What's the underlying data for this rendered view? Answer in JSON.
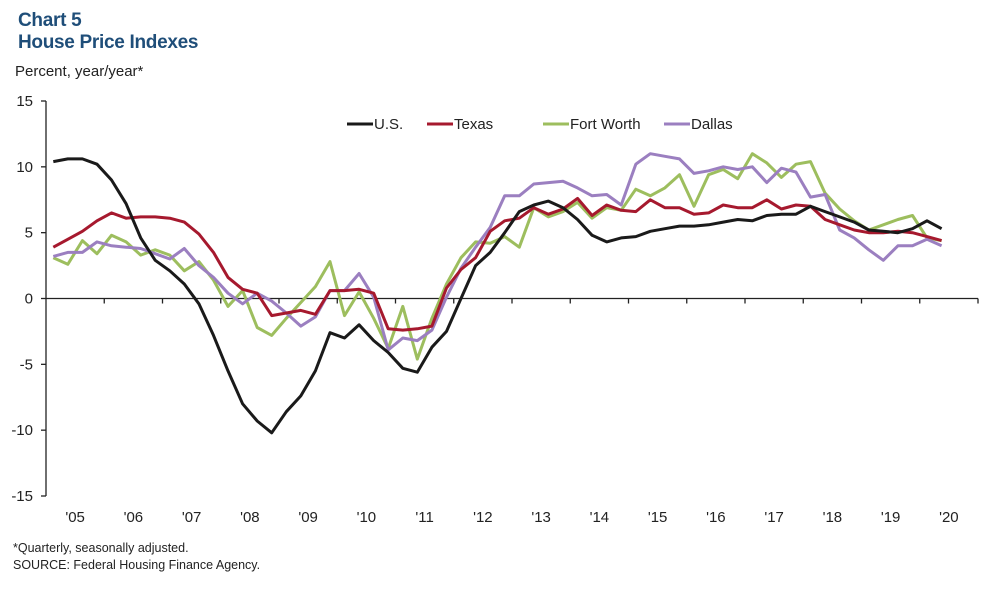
{
  "header": {
    "chart_label": "Chart 5",
    "title": "House Price Indexes",
    "units": "Percent, year/year*"
  },
  "footer": {
    "note": "*Quarterly, seasonally adjusted.",
    "source": "SOURCE: Federal Housing Finance Agency."
  },
  "chart_data": {
    "type": "line",
    "title": "House Price Indexes",
    "ylabel": "Percent, year/year*",
    "xlabel": "",
    "ylim": [
      -15,
      15
    ],
    "yticks": [
      15,
      10,
      5,
      0,
      -5,
      -10,
      -15
    ],
    "ytick_labels": [
      "15",
      "10",
      "5",
      "0",
      "-5",
      "-10",
      "-15"
    ],
    "xtick_labels": [
      "'05",
      "'06",
      "'07",
      "'08",
      "'09",
      "'10",
      "'11",
      "'12",
      "'13",
      "'14",
      "'15",
      "'16",
      "'17",
      "'18",
      "'19",
      "'20"
    ],
    "x_start": "2005Q1",
    "frequency": "quarterly",
    "grid": false,
    "legend_position": "top-center",
    "series": [
      {
        "name": "U.S.",
        "color": "#1a1a1a",
        "values": [
          10.4,
          10.6,
          10.6,
          10.2,
          9.0,
          7.2,
          4.6,
          2.9,
          2.1,
          1.1,
          -0.4,
          -2.8,
          -5.5,
          -8.0,
          -9.3,
          -10.2,
          -8.6,
          -7.4,
          -5.5,
          -2.6,
          -3.0,
          -2.0,
          -3.2,
          -4.1,
          -5.3,
          -5.6,
          -3.7,
          -2.5,
          0.0,
          2.5,
          3.5,
          5.0,
          6.6,
          7.1,
          7.4,
          6.9,
          6.0,
          4.8,
          4.3,
          4.6,
          4.7,
          5.1,
          5.3,
          5.5,
          5.5,
          5.6,
          5.8,
          6.0,
          5.9,
          6.3,
          6.4,
          6.4,
          7.0,
          6.6,
          6.2,
          5.8,
          5.2,
          5.1,
          5.0,
          5.3,
          5.9,
          5.3
        ]
      },
      {
        "name": "Texas",
        "color": "#a6192e",
        "values": [
          3.9,
          4.5,
          5.1,
          5.9,
          6.5,
          6.1,
          6.2,
          6.2,
          6.1,
          5.8,
          4.9,
          3.5,
          1.6,
          0.7,
          0.4,
          -1.3,
          -1.1,
          -0.9,
          -1.2,
          0.6,
          0.6,
          0.7,
          0.4,
          -2.3,
          -2.4,
          -2.3,
          -2.1,
          0.8,
          2.2,
          3.1,
          5.1,
          5.9,
          6.1,
          6.9,
          6.4,
          6.8,
          7.6,
          6.3,
          7.1,
          6.7,
          6.6,
          7.5,
          6.9,
          6.9,
          6.4,
          6.5,
          7.1,
          6.9,
          6.9,
          7.5,
          6.8,
          7.1,
          7.0,
          6.0,
          5.6,
          5.2,
          5.0,
          5.0,
          5.1,
          5.0,
          4.7,
          4.4
        ]
      },
      {
        "name": "Fort Worth",
        "color": "#9dbe5e",
        "values": [
          3.1,
          2.6,
          4.4,
          3.4,
          4.8,
          4.3,
          3.3,
          3.7,
          3.3,
          2.1,
          2.8,
          1.4,
          -0.6,
          0.6,
          -2.2,
          -2.8,
          -1.5,
          -0.3,
          0.9,
          2.8,
          -1.3,
          0.5,
          -1.5,
          -3.8,
          -0.6,
          -4.6,
          -1.5,
          1.1,
          3.1,
          4.3,
          4.2,
          4.7,
          3.9,
          6.9,
          6.2,
          6.6,
          7.3,
          6.1,
          6.9,
          6.7,
          8.3,
          7.8,
          8.4,
          9.4,
          7.0,
          9.4,
          9.8,
          9.1,
          11.0,
          10.3,
          9.2,
          10.2,
          10.4,
          8.0,
          6.8,
          5.9,
          5.2,
          5.6,
          6.0,
          6.3,
          4.6,
          4.4
        ]
      },
      {
        "name": "Dallas",
        "color": "#9b7fc0",
        "values": [
          3.2,
          3.5,
          3.5,
          4.3,
          4.0,
          3.9,
          3.8,
          3.4,
          3.0,
          3.8,
          2.5,
          1.6,
          0.4,
          -0.4,
          0.4,
          -0.2,
          -1.1,
          -2.1,
          -1.4,
          0.6,
          0.6,
          1.9,
          0.1,
          -3.9,
          -3.0,
          -3.2,
          -2.4,
          0.1,
          2.3,
          3.9,
          5.4,
          7.8,
          7.8,
          8.7,
          8.8,
          8.9,
          8.4,
          7.8,
          7.9,
          7.1,
          10.2,
          11.0,
          10.8,
          10.6,
          9.5,
          9.7,
          10.0,
          9.8,
          10.0,
          8.8,
          9.9,
          9.6,
          7.7,
          7.9,
          5.2,
          4.6,
          3.7,
          2.9,
          4.0,
          4.0,
          4.5,
          4.0
        ]
      }
    ]
  }
}
